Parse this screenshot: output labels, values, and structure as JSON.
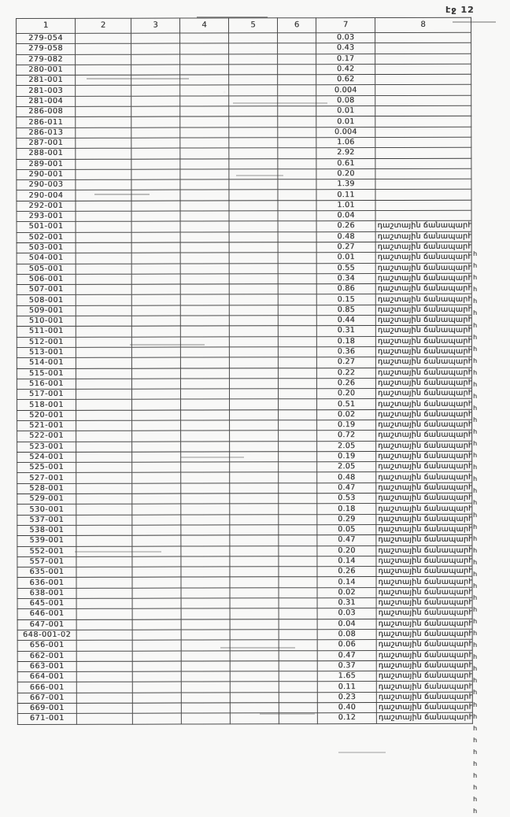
{
  "page_label": "էջ 12",
  "table": {
    "headers": [
      "1",
      "2",
      "3",
      "4",
      "5",
      "6",
      "7",
      "8"
    ],
    "note_text": "դաշտային ճանապարհ",
    "note_overflow": "հ",
    "rows": [
      {
        "code": "279-054",
        "value": "0.03",
        "note": false
      },
      {
        "code": "279-058",
        "value": "0.43",
        "note": false
      },
      {
        "code": "279-082",
        "value": "0.17",
        "note": false
      },
      {
        "code": "280-001",
        "value": "0.42",
        "note": false
      },
      {
        "code": "281-001",
        "value": "0.62",
        "note": false
      },
      {
        "code": "281-003",
        "value": "0.004",
        "note": false
      },
      {
        "code": "281-004",
        "value": "0.08",
        "note": false
      },
      {
        "code": "286-008",
        "value": "0.01",
        "note": false
      },
      {
        "code": "286-011",
        "value": "0.01",
        "note": false
      },
      {
        "code": "286-013",
        "value": "0.004",
        "note": false
      },
      {
        "code": "287-001",
        "value": "1.06",
        "note": false
      },
      {
        "code": "288-001",
        "value": "2.92",
        "note": false
      },
      {
        "code": "289-001",
        "value": "0.61",
        "note": false
      },
      {
        "code": "290-001",
        "value": "0.20",
        "note": false
      },
      {
        "code": "290-003",
        "value": "1.39",
        "note": false
      },
      {
        "code": "290-004",
        "value": "0.11",
        "note": false
      },
      {
        "code": "292-001",
        "value": "1.01",
        "note": false
      },
      {
        "code": "293-001",
        "value": "0.04",
        "note": false
      },
      {
        "code": "501-001",
        "value": "0.26",
        "note": true
      },
      {
        "code": "502-001",
        "value": "0.48",
        "note": true
      },
      {
        "code": "503-001",
        "value": "0.27",
        "note": true
      },
      {
        "code": "504-001",
        "value": "0.01",
        "note": true
      },
      {
        "code": "505-001",
        "value": "0.55",
        "note": true
      },
      {
        "code": "506-001",
        "value": "0.34",
        "note": true
      },
      {
        "code": "507-001",
        "value": "0.86",
        "note": true
      },
      {
        "code": "508-001",
        "value": "0.15",
        "note": true
      },
      {
        "code": "509-001",
        "value": "0.85",
        "note": true
      },
      {
        "code": "510-001",
        "value": "0.44",
        "note": true
      },
      {
        "code": "511-001",
        "value": "0.31",
        "note": true
      },
      {
        "code": "512-001",
        "value": "0.18",
        "note": true
      },
      {
        "code": "513-001",
        "value": "0.36",
        "note": true
      },
      {
        "code": "514-001",
        "value": "0.27",
        "note": true
      },
      {
        "code": "515-001",
        "value": "0.22",
        "note": true
      },
      {
        "code": "516-001",
        "value": "0.26",
        "note": true
      },
      {
        "code": "517-001",
        "value": "0.20",
        "note": true
      },
      {
        "code": "518-001",
        "value": "0.51",
        "note": true
      },
      {
        "code": "520-001",
        "value": "0.02",
        "note": true
      },
      {
        "code": "521-001",
        "value": "0.19",
        "note": true
      },
      {
        "code": "522-001",
        "value": "0.72",
        "note": true
      },
      {
        "code": "523-001",
        "value": "2.05",
        "note": true
      },
      {
        "code": "524-001",
        "value": "0.19",
        "note": true
      },
      {
        "code": "525-001",
        "value": "2.05",
        "note": true
      },
      {
        "code": "527-001",
        "value": "0.48",
        "note": true
      },
      {
        "code": "528-001",
        "value": "0.47",
        "note": true
      },
      {
        "code": "529-001",
        "value": "0.53",
        "note": true
      },
      {
        "code": "530-001",
        "value": "0.18",
        "note": true
      },
      {
        "code": "537-001",
        "value": "0.29",
        "note": true
      },
      {
        "code": "538-001",
        "value": "0.05",
        "note": true
      },
      {
        "code": "539-001",
        "value": "0.47",
        "note": true
      },
      {
        "code": "552-001",
        "value": "0.20",
        "note": true
      },
      {
        "code": "557-001",
        "value": "0.14",
        "note": true
      },
      {
        "code": "635-001",
        "value": "0.26",
        "note": true
      },
      {
        "code": "636-001",
        "value": "0.14",
        "note": true
      },
      {
        "code": "638-001",
        "value": "0.02",
        "note": true
      },
      {
        "code": "645-001",
        "value": "0.31",
        "note": true
      },
      {
        "code": "646-001",
        "value": "0.03",
        "note": true
      },
      {
        "code": "647-001",
        "value": "0.04",
        "note": true
      },
      {
        "code": "648-001-02",
        "value": "0.08",
        "note": true
      },
      {
        "code": "656-001",
        "value": "0.06",
        "note": true
      },
      {
        "code": "662-001",
        "value": "0.47",
        "note": true
      },
      {
        "code": "663-001",
        "value": "0.37",
        "note": true
      },
      {
        "code": "664-001",
        "value": "1.65",
        "note": true
      },
      {
        "code": "666-001",
        "value": "0.11",
        "note": true
      },
      {
        "code": "667-001",
        "value": "0.23",
        "note": true
      },
      {
        "code": "669-001",
        "value": "0.40",
        "note": true
      },
      {
        "code": "671-001",
        "value": "0.12",
        "note": true
      }
    ]
  }
}
